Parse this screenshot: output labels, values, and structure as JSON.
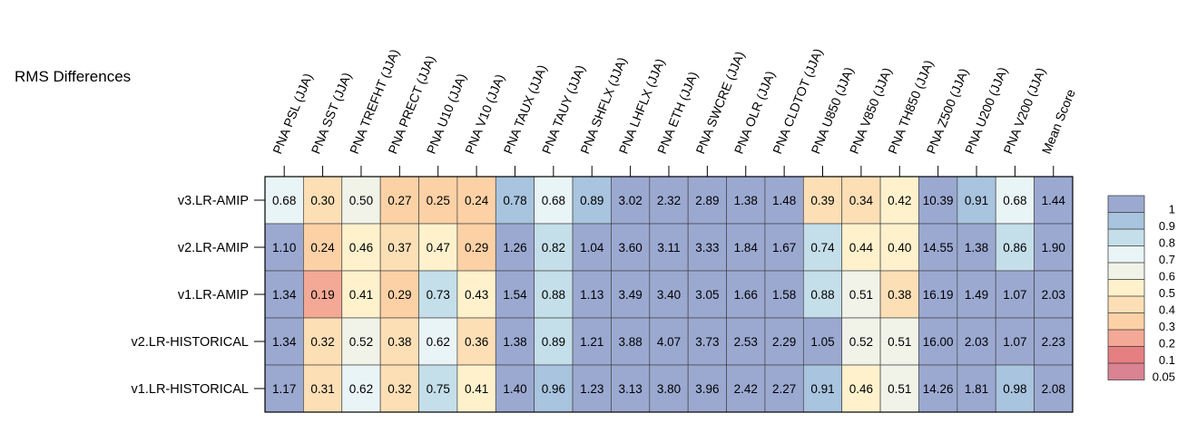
{
  "chart_data": {
    "type": "heatmap",
    "title": "RMS Differences",
    "columns": [
      "PNA PSL (JJA)",
      "PNA SST (JJA)",
      "PNA TREFHT (JJA)",
      "PNA PRECT (JJA)",
      "PNA U10 (JJA)",
      "PNA V10 (JJA)",
      "PNA TAUX (JJA)",
      "PNA TAUY (JJA)",
      "PNA SHFLX (JJA)",
      "PNA LHFLX (JJA)",
      "PNA ETH (JJA)",
      "PNA SWCRE (JJA)",
      "PNA OLR (JJA)",
      "PNA CLDTOT (JJA)",
      "PNA U850 (JJA)",
      "PNA V850 (JJA)",
      "PNA TH850 (JJA)",
      "PNA Z500 (JJA)",
      "PNA U200 (JJA)",
      "PNA V200 (JJA)",
      "Mean Score"
    ],
    "rows": [
      "v3.LR-AMIP",
      "v2.LR-AMIP",
      "v1.LR-AMIP",
      "v2.LR-HISTORICAL",
      "v1.LR-HISTORICAL"
    ],
    "values": [
      [
        "0.68",
        "0.30",
        "0.50",
        "0.27",
        "0.25",
        "0.24",
        "0.78",
        "0.68",
        "0.89",
        "3.02",
        "2.32",
        "2.89",
        "1.38",
        "1.48",
        "0.39",
        "0.34",
        "0.42",
        "10.39",
        "0.91",
        "0.68",
        "1.44"
      ],
      [
        "1.10",
        "0.24",
        "0.46",
        "0.37",
        "0.47",
        "0.29",
        "1.26",
        "0.82",
        "1.04",
        "3.60",
        "3.11",
        "3.33",
        "1.84",
        "1.67",
        "0.74",
        "0.44",
        "0.40",
        "14.55",
        "1.38",
        "0.86",
        "1.90"
      ],
      [
        "1.34",
        "0.19",
        "0.41",
        "0.29",
        "0.73",
        "0.43",
        "1.54",
        "0.88",
        "1.13",
        "3.49",
        "3.40",
        "3.05",
        "1.66",
        "1.58",
        "0.88",
        "0.51",
        "0.38",
        "16.19",
        "1.49",
        "1.07",
        "2.03"
      ],
      [
        "1.34",
        "0.32",
        "0.52",
        "0.38",
        "0.62",
        "0.36",
        "1.38",
        "0.89",
        "1.21",
        "3.88",
        "4.07",
        "3.73",
        "2.53",
        "2.29",
        "1.05",
        "0.52",
        "0.51",
        "16.00",
        "2.03",
        "1.07",
        "2.23"
      ],
      [
        "1.17",
        "0.31",
        "0.62",
        "0.32",
        "0.75",
        "0.41",
        "1.40",
        "0.96",
        "1.23",
        "3.13",
        "3.80",
        "3.96",
        "2.42",
        "2.27",
        "0.91",
        "0.46",
        "0.51",
        "14.26",
        "1.81",
        "0.98",
        "2.08"
      ]
    ],
    "cell_colors": [
      [
        "#e9f4f6",
        "#fddfb6",
        "#f1f3e8",
        "#fcd1a6",
        "#fcd1a6",
        "#fcd1a6",
        "#a8c4de",
        "#e9f4f6",
        "#a8c4de",
        "#9ba9d1",
        "#9ba9d1",
        "#9ba9d1",
        "#9ba9d1",
        "#9ba9d1",
        "#fddfb6",
        "#fddfb6",
        "#fef1cc",
        "#9ba9d1",
        "#a8c4de",
        "#e9f4f6",
        "#9ba9d1"
      ],
      [
        "#9ba9d1",
        "#fcd1a6",
        "#fef1cc",
        "#fddfb6",
        "#fef1cc",
        "#fcd1a6",
        "#9ba9d1",
        "#c4dfea",
        "#9ba9d1",
        "#9ba9d1",
        "#9ba9d1",
        "#9ba9d1",
        "#9ba9d1",
        "#9ba9d1",
        "#c4dfea",
        "#fef1cc",
        "#fef1cc",
        "#9ba9d1",
        "#9ba9d1",
        "#c4dfea",
        "#9ba9d1"
      ],
      [
        "#9ba9d1",
        "#f4a996",
        "#fef1cc",
        "#fcd1a6",
        "#c4dfea",
        "#fef1cc",
        "#9ba9d1",
        "#c4dfea",
        "#9ba9d1",
        "#9ba9d1",
        "#9ba9d1",
        "#9ba9d1",
        "#9ba9d1",
        "#9ba9d1",
        "#c4dfea",
        "#f1f3e8",
        "#fddfb6",
        "#9ba9d1",
        "#9ba9d1",
        "#9ba9d1",
        "#9ba9d1"
      ],
      [
        "#9ba9d1",
        "#fddfb6",
        "#f1f3e8",
        "#fddfb6",
        "#e9f4f6",
        "#fddfb6",
        "#9ba9d1",
        "#c4dfea",
        "#9ba9d1",
        "#9ba9d1",
        "#9ba9d1",
        "#9ba9d1",
        "#9ba9d1",
        "#9ba9d1",
        "#9ba9d1",
        "#f1f3e8",
        "#f1f3e8",
        "#9ba9d1",
        "#9ba9d1",
        "#9ba9d1",
        "#9ba9d1"
      ],
      [
        "#9ba9d1",
        "#fddfb6",
        "#e9f4f6",
        "#fddfb6",
        "#c4dfea",
        "#fef1cc",
        "#9ba9d1",
        "#a8c4de",
        "#9ba9d1",
        "#9ba9d1",
        "#9ba9d1",
        "#9ba9d1",
        "#9ba9d1",
        "#9ba9d1",
        "#a8c4de",
        "#fef1cc",
        "#f1f3e8",
        "#9ba9d1",
        "#9ba9d1",
        "#a8c4de",
        "#9ba9d1"
      ]
    ],
    "colorbar": {
      "labels": [
        "1",
        "0.9",
        "0.8",
        "0.7",
        "0.6",
        "0.5",
        "0.4",
        "0.3",
        "0.2",
        "0.1",
        "0.05"
      ],
      "bands": [
        "#9ba9d1",
        "#a8c4de",
        "#c4dfea",
        "#e9f4f6",
        "#f1f3e8",
        "#fef1cc",
        "#fddfb6",
        "#fcd1a6",
        "#f4a996",
        "#e67f82",
        "#d98393"
      ]
    },
    "grid": true
  }
}
